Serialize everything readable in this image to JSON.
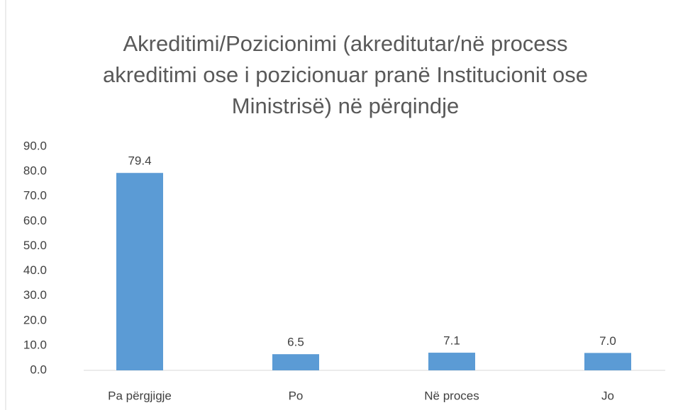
{
  "chart_data": {
    "type": "bar",
    "title": "Akreditimi/Pozicionimi (akreditutar/në process akreditimi ose i pozicionuar pranë Institucionit ose Ministrisë)  në përqindje",
    "categories": [
      "Pa përgjigje",
      "Po",
      "Në proces",
      "Jo"
    ],
    "values": [
      79.4,
      6.5,
      7.1,
      7.0
    ],
    "value_labels": [
      "79.4",
      "6.5",
      "7.1",
      "7.0"
    ],
    "color": "#5b9bd5",
    "ylim": [
      0,
      90
    ],
    "yticks": [
      {
        "value": 0,
        "label": "0.0"
      },
      {
        "value": 10,
        "label": "10.0"
      },
      {
        "value": 20,
        "label": "20.0"
      },
      {
        "value": 30,
        "label": "30.0"
      },
      {
        "value": 40,
        "label": "40.0"
      },
      {
        "value": 50,
        "label": "50.0"
      },
      {
        "value": 60,
        "label": "60.0"
      },
      {
        "value": 70,
        "label": "70.0"
      },
      {
        "value": 80,
        "label": "80.0"
      },
      {
        "value": 90,
        "label": "90.0"
      }
    ],
    "grid": false
  }
}
